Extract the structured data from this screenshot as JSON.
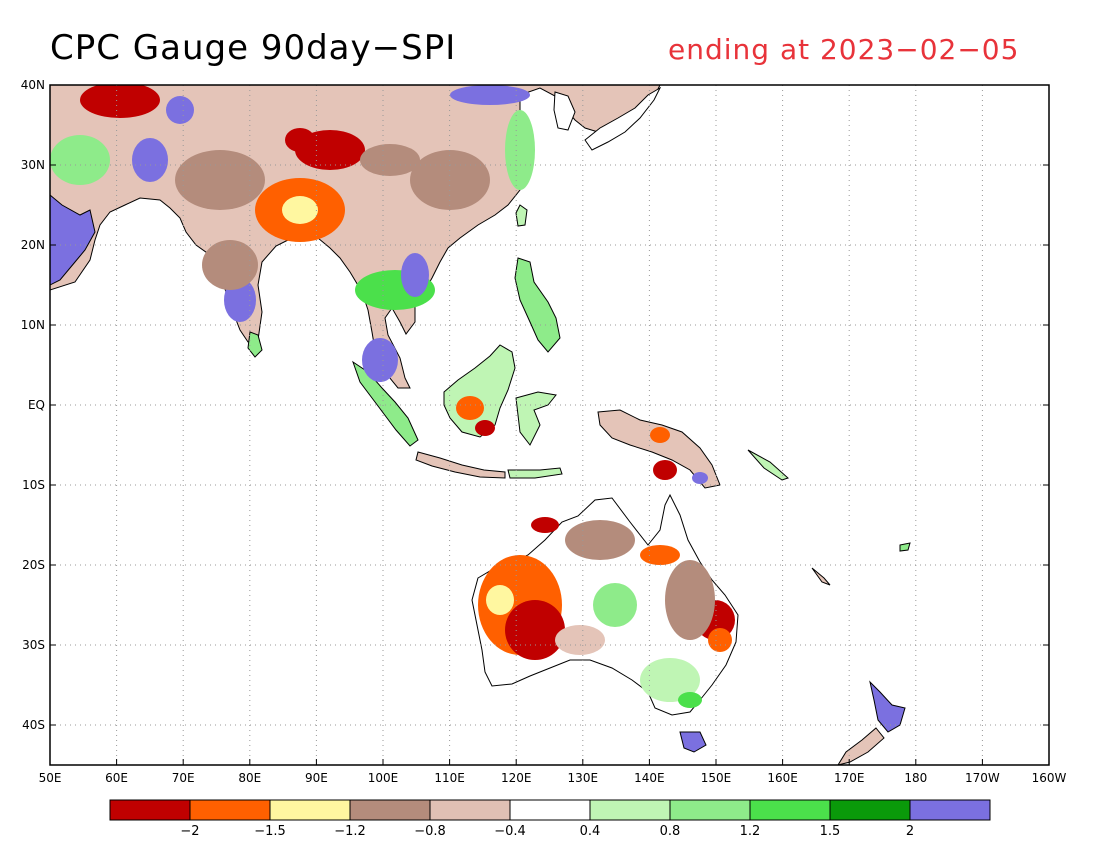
{
  "title": {
    "left": "CPC Gauge 90day−SPI",
    "right": "ending at 2023−02−05",
    "right_color": "#e8333a"
  },
  "map": {
    "lon_range": [
      50,
      200
    ],
    "lat_range": [
      -45,
      40
    ],
    "grid": "dotted",
    "lat_ticks": [
      "40N",
      "30N",
      "20N",
      "10N",
      "EQ",
      "10S",
      "20S",
      "30S",
      "40S"
    ],
    "lon_ticks": [
      "50E",
      "60E",
      "70E",
      "80E",
      "90E",
      "100E",
      "110E",
      "120E",
      "130E",
      "140E",
      "150E",
      "160E",
      "170E",
      "180",
      "170W",
      "160W"
    ]
  },
  "colorbar": {
    "colors": [
      "#c00000",
      "#ff6000",
      "#fff7a0",
      "#b48c7c",
      "#e0c0b4",
      "#ffffff",
      "#bff5b4",
      "#8eeb8a",
      "#4be04b",
      "#0a9a0a",
      "#7b70e0"
    ],
    "labels": [
      "−2",
      "−1.5",
      "−1.2",
      "−0.8",
      "−0.4",
      "0.4",
      "0.8",
      "1.2",
      "1.5",
      "2"
    ]
  }
}
